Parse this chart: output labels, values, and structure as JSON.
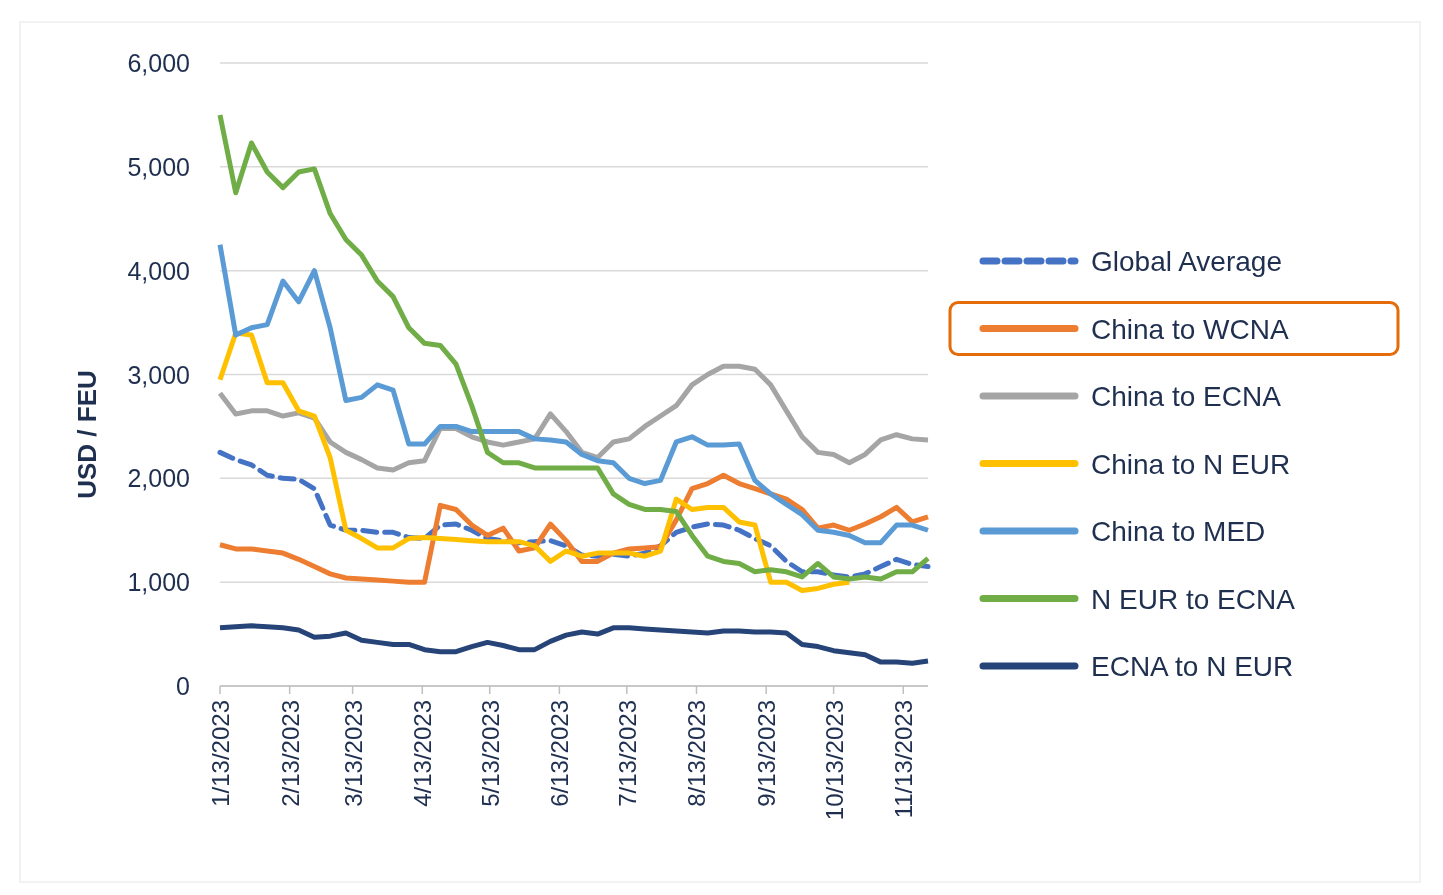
{
  "chart_data": {
    "type": "line",
    "ylabel": "USD / FEU",
    "grid": "y",
    "legend": "right",
    "x": [
      "2023-01-13",
      "2023-01-20",
      "2023-01-27",
      "2023-02-03",
      "2023-02-10",
      "2023-02-17",
      "2023-02-24",
      "2023-03-03",
      "2023-03-10",
      "2023-03-17",
      "2023-03-24",
      "2023-03-31",
      "2023-04-07",
      "2023-04-14",
      "2023-04-21",
      "2023-04-28",
      "2023-05-05",
      "2023-05-12",
      "2023-05-19",
      "2023-05-26",
      "2023-06-02",
      "2023-06-09",
      "2023-06-16",
      "2023-06-23",
      "2023-06-30",
      "2023-07-07",
      "2023-07-14",
      "2023-07-21",
      "2023-07-28",
      "2023-08-04",
      "2023-08-11",
      "2023-08-18",
      "2023-08-25",
      "2023-09-01",
      "2023-09-08",
      "2023-09-15",
      "2023-09-22",
      "2023-09-29",
      "2023-10-06",
      "2023-10-13",
      "2023-10-20",
      "2023-10-27",
      "2023-11-03",
      "2023-11-10",
      "2023-11-17",
      "2023-11-24"
    ],
    "xlim": [
      "2023-01-13",
      "2023-11-24"
    ],
    "xticks": [
      {
        "value": "2023-01-13",
        "label": "1/13/2023"
      },
      {
        "value": "2023-02-13",
        "label": "2/13/2023"
      },
      {
        "value": "2023-03-13",
        "label": "3/13/2023"
      },
      {
        "value": "2023-04-13",
        "label": "4/13/2023"
      },
      {
        "value": "2023-05-13",
        "label": "5/13/2023"
      },
      {
        "value": "2023-06-13",
        "label": "6/13/2023"
      },
      {
        "value": "2023-07-13",
        "label": "7/13/2023"
      },
      {
        "value": "2023-08-13",
        "label": "8/13/2023"
      },
      {
        "value": "2023-09-13",
        "label": "9/13/2023"
      },
      {
        "value": "2023-10-13",
        "label": "10/13/2023"
      },
      {
        "value": "2023-11-13",
        "label": "11/13/2023"
      }
    ],
    "ylim": [
      0,
      6000
    ],
    "yticks": [
      0,
      {
        "value": 1000,
        "label": "1,000"
      },
      {
        "value": 2000,
        "label": "2,000"
      },
      {
        "value": 3000,
        "label": "3,000"
      },
      {
        "value": 4000,
        "label": "4,000"
      },
      {
        "value": 5000,
        "label": "5,000"
      },
      {
        "value": 6000,
        "label": "6,000"
      }
    ],
    "series": [
      {
        "name": "Global Average",
        "color": "#4472c4",
        "line_style": "dashed",
        "values": [
          2250,
          2180,
          2130,
          2030,
          2000,
          1990,
          1900,
          1550,
          1500,
          1500,
          1480,
          1480,
          1430,
          1420,
          1550,
          1560,
          1500,
          1420,
          1400,
          1380,
          1390,
          1400,
          1350,
          1260,
          1250,
          1270,
          1250,
          1280,
          1350,
          1480,
          1530,
          1560,
          1550,
          1500,
          1420,
          1350,
          1200,
          1100,
          1100,
          1070,
          1050,
          1080,
          1150,
          1220,
          1170,
          1150
        ]
      },
      {
        "name": "China to WCNA",
        "color": "#ed7d31",
        "line_style": "solid",
        "values": [
          1360,
          1320,
          1320,
          1300,
          1280,
          1220,
          1150,
          1080,
          1040,
          1030,
          1020,
          1010,
          1000,
          1000,
          1740,
          1700,
          1550,
          1450,
          1520,
          1300,
          1330,
          1560,
          1400,
          1200,
          1200,
          1280,
          1320,
          1330,
          1340,
          1600,
          1900,
          1950,
          2030,
          1950,
          1900,
          1850,
          1800,
          1700,
          1520,
          1550,
          1500,
          1560,
          1630,
          1720,
          1580,
          1630
        ]
      },
      {
        "name": "China to ECNA",
        "color": "#a5a5a5",
        "line_style": "solid",
        "values": [
          2820,
          2620,
          2650,
          2650,
          2600,
          2630,
          2580,
          2350,
          2250,
          2180,
          2100,
          2080,
          2150,
          2170,
          2480,
          2480,
          2400,
          2350,
          2320,
          2350,
          2380,
          2620,
          2450,
          2250,
          2200,
          2350,
          2380,
          2500,
          2600,
          2700,
          2900,
          3000,
          3080,
          3080,
          3050,
          2900,
          2650,
          2400,
          2250,
          2230,
          2150,
          2230,
          2370,
          2420,
          2380,
          2370
        ]
      },
      {
        "name": "China to N EUR",
        "color": "#ffc000",
        "line_style": "solid",
        "values": [
          2950,
          3400,
          3380,
          2920,
          2920,
          2650,
          2600,
          2200,
          1500,
          1420,
          1330,
          1330,
          1420,
          1430,
          1420,
          1410,
          1400,
          1390,
          1390,
          1390,
          1350,
          1200,
          1300,
          1250,
          1280,
          1280,
          1280,
          1250,
          1300,
          1800,
          1700,
          1720,
          1720,
          1580,
          1550,
          1000,
          1000,
          920,
          940,
          980,
          1000,
          null,
          null,
          null,
          null,
          null
        ]
      },
      {
        "name": "China to MED",
        "color": "#5b9bd5",
        "line_style": "solid",
        "values": [
          4250,
          3380,
          3450,
          3480,
          3900,
          3700,
          4000,
          3450,
          2750,
          2780,
          2900,
          2850,
          2330,
          2330,
          2500,
          2500,
          2450,
          2450,
          2450,
          2450,
          2380,
          2370,
          2350,
          2230,
          2170,
          2150,
          2000,
          1950,
          1980,
          2350,
          2400,
          2320,
          2320,
          2330,
          1980,
          1850,
          1750,
          1650,
          1500,
          1480,
          1450,
          1380,
          1380,
          1550,
          1550,
          1500
        ]
      },
      {
        "name": "N EUR to ECNA",
        "color": "#70ad47",
        "line_style": "solid",
        "values": [
          5500,
          4750,
          5230,
          4950,
          4800,
          4950,
          4980,
          4550,
          4300,
          4150,
          3900,
          3750,
          3450,
          3300,
          3280,
          3100,
          2700,
          2250,
          2150,
          2150,
          2100,
          2100,
          2100,
          2100,
          2100,
          1850,
          1750,
          1700,
          1700,
          1680,
          1450,
          1250,
          1200,
          1180,
          1100,
          1120,
          1100,
          1050,
          1180,
          1050,
          1030,
          1050,
          1030,
          1100,
          1100,
          1230
        ]
      },
      {
        "name": "ECNA to N EUR",
        "color": "#264478",
        "line_style": "solid",
        "values": [
          560,
          570,
          580,
          570,
          560,
          540,
          470,
          480,
          510,
          440,
          420,
          400,
          400,
          350,
          330,
          330,
          380,
          420,
          390,
          350,
          350,
          430,
          490,
          520,
          500,
          560,
          560,
          550,
          540,
          530,
          520,
          510,
          530,
          530,
          520,
          520,
          510,
          400,
          380,
          340,
          320,
          300,
          230,
          230,
          220,
          240
        ]
      }
    ]
  }
}
